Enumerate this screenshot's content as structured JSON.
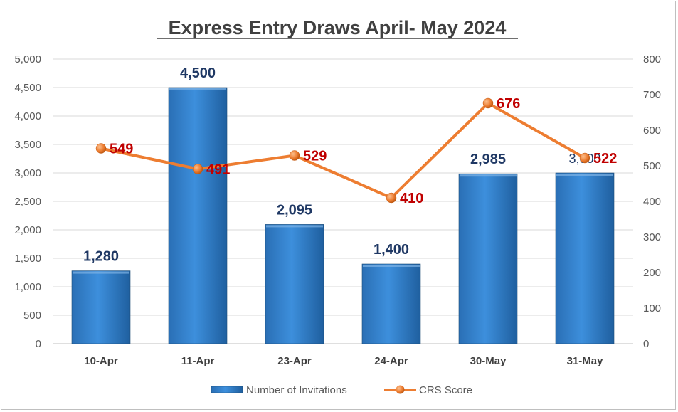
{
  "chart_data": {
    "type": "bar",
    "title": "Express Entry Draws April- May 2024",
    "categories": [
      "10-Apr",
      "11-Apr",
      "23-Apr",
      "24-Apr",
      "30-May",
      "31-May"
    ],
    "series": [
      {
        "name": "Number of Invitations",
        "type": "bar",
        "axis": "left",
        "values": [
          1280,
          4500,
          2095,
          1400,
          2985,
          3000
        ],
        "labels": [
          "1,280",
          "4,500",
          "2,095",
          "1,400",
          "2,985",
          "3,000"
        ],
        "color": "#2e75b6"
      },
      {
        "name": "CRS Score",
        "type": "line",
        "axis": "right",
        "values": [
          549,
          491,
          529,
          410,
          676,
          522
        ],
        "labels": [
          "549",
          "491",
          "529",
          "410",
          "676",
          "522"
        ],
        "color": "#ed7d31"
      }
    ],
    "y_left": {
      "range": [
        0,
        5000
      ],
      "ticks": [
        "0",
        "500",
        "1,000",
        "1,500",
        "2,000",
        "2,500",
        "3,000",
        "3,500",
        "4,000",
        "4,500",
        "5,000"
      ]
    },
    "y_right": {
      "range": [
        0,
        800
      ],
      "ticks": [
        "0",
        "100",
        "200",
        "300",
        "400",
        "500",
        "600",
        "700",
        "800"
      ]
    },
    "grid": "horizontal",
    "legend_position": "bottom",
    "colors": {
      "bar_label": "#1f3864",
      "line_label": "#c00000",
      "grid": "#d9d9d9"
    }
  }
}
